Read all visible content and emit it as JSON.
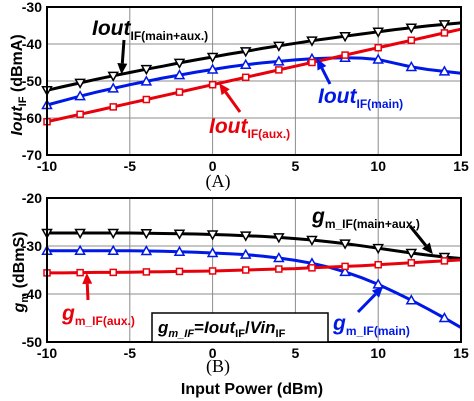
{
  "panels": [
    "(A)",
    "(B)"
  ],
  "chart_data": [
    {
      "type": "line",
      "panel_label": "(A)",
      "xlabel": "",
      "ylabel": "Iout_IF (dBmA)",
      "xlim": [
        -10,
        15
      ],
      "ylim": [
        -70,
        -30
      ],
      "xticks": [
        -10,
        -5,
        0,
        5,
        10,
        15
      ],
      "yticks": [
        -30,
        -40,
        -50,
        -60,
        -70
      ],
      "grid": true,
      "annotations": [
        {
          "main": "Iout",
          "sub": "IF(main+aux.)",
          "color": "#000000"
        },
        {
          "main": "Iout",
          "sub": "IF(aux.)",
          "color": "#e8000b"
        },
        {
          "main": "Iout",
          "sub": "IF(main)",
          "color": "#0018e6"
        }
      ],
      "series": [
        {
          "label_ref": 0,
          "color": "#000000",
          "marker": "triangle-down",
          "x": [
            -10,
            -9,
            -8,
            -7,
            -6,
            -5,
            -4,
            -3,
            -2,
            -1,
            0,
            1,
            2,
            3,
            4,
            5,
            6,
            7,
            8,
            9,
            10,
            11,
            12,
            13,
            14,
            15
          ],
          "y": [
            -52.5,
            -51.5,
            -50.5,
            -49.5,
            -48.6,
            -47.7,
            -46.8,
            -46,
            -45.1,
            -44.3,
            -43.5,
            -42.7,
            -42,
            -41.2,
            -40.5,
            -39.8,
            -39.1,
            -38.5,
            -37.9,
            -37.3,
            -36.7,
            -36.1,
            -35.6,
            -35.1,
            -34.7,
            -34.3
          ]
        },
        {
          "label_ref": 2,
          "color": "#0018e6",
          "marker": "triangle-up",
          "x": [
            -10,
            -9,
            -8,
            -7,
            -6,
            -5,
            -4,
            -3,
            -2,
            -1,
            0,
            1,
            2,
            3,
            4,
            5,
            6,
            7,
            8,
            9,
            10,
            11,
            12,
            13,
            14,
            15
          ],
          "y": [
            -56.5,
            -55.3,
            -54.1,
            -53,
            -52,
            -51,
            -50.1,
            -49.2,
            -48.4,
            -47.6,
            -46.9,
            -46.2,
            -45.6,
            -45.1,
            -44.7,
            -44.3,
            -44,
            -43.8,
            -43.7,
            -43.8,
            -44.2,
            -45.2,
            -46.2,
            -46.9,
            -47.4,
            -47.9
          ]
        },
        {
          "label_ref": 1,
          "color": "#e8000b",
          "marker": "square",
          "x": [
            -10,
            -9,
            -8,
            -7,
            -6,
            -5,
            -4,
            -3,
            -2,
            -1,
            0,
            1,
            2,
            3,
            4,
            5,
            6,
            7,
            8,
            9,
            10,
            11,
            12,
            13,
            14,
            15
          ],
          "y": [
            -61,
            -60,
            -59,
            -58,
            -57,
            -56,
            -55,
            -54,
            -53,
            -52,
            -51,
            -50,
            -49,
            -48,
            -47,
            -46,
            -45,
            -44,
            -43,
            -42,
            -41,
            -40,
            -39,
            -38,
            -37,
            -36
          ]
        }
      ]
    },
    {
      "type": "line",
      "panel_label": "(B)",
      "xlabel": "Input Power (dBm)",
      "ylabel": "gm (dBmS)",
      "xlim": [
        -10,
        15
      ],
      "ylim": [
        -50,
        -20
      ],
      "xticks": [
        -10,
        -5,
        0,
        5,
        10,
        15
      ],
      "yticks": [
        -20,
        -30,
        -40,
        -50
      ],
      "grid": true,
      "annotations": [
        {
          "main": "g",
          "sub": "m_IF(main+aux.)",
          "color": "#000000"
        },
        {
          "main": "g",
          "sub": "m_IF(aux.)",
          "color": "#e8000b"
        },
        {
          "main": "g",
          "sub": "m_IF(main)",
          "color": "#0018e6"
        }
      ],
      "equation": {
        "g": "g",
        "m_if": "m_IF",
        "eq": "=",
        "iout": "Iout",
        "if1": "IF",
        "slash": "/",
        "vin": "Vin",
        "if2": "IF"
      },
      "series": [
        {
          "label_ref": 0,
          "color": "#000000",
          "marker": "triangle-down",
          "x": [
            -10,
            -9,
            -8,
            -7,
            -6,
            -5,
            -4,
            -3,
            -2,
            -1,
            0,
            1,
            2,
            3,
            4,
            5,
            6,
            7,
            8,
            9,
            10,
            11,
            12,
            13,
            14,
            15
          ],
          "y": [
            -27.3,
            -27.3,
            -27.3,
            -27.3,
            -27.3,
            -27.3,
            -27.35,
            -27.4,
            -27.45,
            -27.5,
            -27.6,
            -27.7,
            -27.85,
            -28,
            -28.2,
            -28.45,
            -28.75,
            -29.1,
            -29.5,
            -29.95,
            -30.45,
            -30.95,
            -31.45,
            -31.9,
            -32.3,
            -32.6
          ]
        },
        {
          "label_ref": 2,
          "color": "#0018e6",
          "marker": "triangle-up",
          "x": [
            -10,
            -9,
            -8,
            -7,
            -6,
            -5,
            -4,
            -3,
            -2,
            -1,
            0,
            1,
            2,
            3,
            4,
            5,
            6,
            7,
            8,
            9,
            10,
            11,
            12,
            13,
            14,
            15
          ],
          "y": [
            -31,
            -31,
            -31,
            -31,
            -31,
            -31,
            -31.05,
            -31.1,
            -31.2,
            -31.3,
            -31.45,
            -31.6,
            -31.8,
            -32.1,
            -32.5,
            -33,
            -33.6,
            -34.4,
            -35.4,
            -36.6,
            -38,
            -39.6,
            -41.3,
            -43.1,
            -45,
            -47
          ]
        },
        {
          "label_ref": 1,
          "color": "#e8000b",
          "marker": "square",
          "x": [
            -10,
            -9,
            -8,
            -7,
            -6,
            -5,
            -4,
            -3,
            -2,
            -1,
            0,
            1,
            2,
            3,
            4,
            5,
            6,
            7,
            8,
            9,
            10,
            11,
            12,
            13,
            14,
            15
          ],
          "y": [
            -35.6,
            -35.6,
            -35.55,
            -35.5,
            -35.5,
            -35.45,
            -35.4,
            -35.35,
            -35.3,
            -35.25,
            -35.2,
            -35.1,
            -35,
            -34.9,
            -34.8,
            -34.7,
            -34.55,
            -34.4,
            -34.25,
            -34.1,
            -33.9,
            -33.7,
            -33.5,
            -33.3,
            -33.1,
            -32.9
          ]
        }
      ]
    }
  ]
}
